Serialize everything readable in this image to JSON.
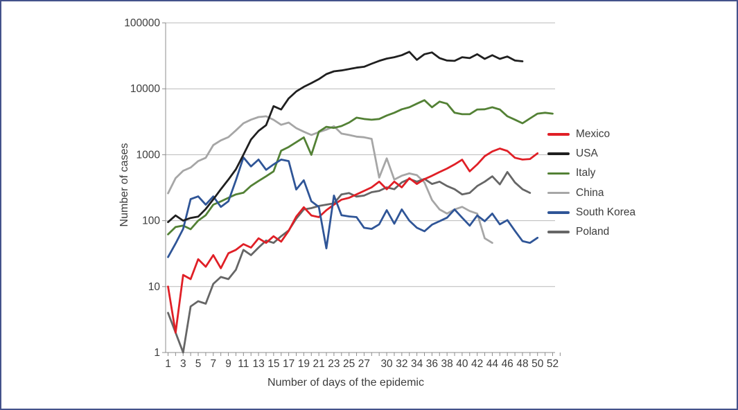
{
  "frame": {
    "border_color": "#44528b",
    "background": "#ffffff"
  },
  "chart_data": {
    "type": "line",
    "title": "",
    "xlabel": "Number of days of the epidemic",
    "ylabel": "Number of cases",
    "y_scale": "log",
    "ylim": [
      1,
      100000
    ],
    "xlim_days": [
      1,
      52
    ],
    "grid": "horizontal-major",
    "legend_position": "right",
    "y_ticks": [
      1,
      10,
      100,
      1000,
      10000,
      100000
    ],
    "y_tick_labels": [
      "1",
      "10",
      "100",
      "1000",
      "10000",
      "100000"
    ],
    "x_tick_days": [
      1,
      3,
      5,
      7,
      9,
      11,
      13,
      15,
      17,
      19,
      21,
      23,
      25,
      27,
      30,
      32,
      34,
      36,
      38,
      40,
      42,
      44,
      46,
      48,
      50,
      52
    ],
    "x_tick_labels": [
      "1",
      "3",
      "5",
      "7",
      "9",
      "11",
      "13",
      "15",
      "17",
      "19",
      "21",
      "23",
      "25",
      "27",
      "30",
      "32",
      "34",
      "36",
      "38",
      "40",
      "42",
      "44",
      "46",
      "48",
      "50",
      "52"
    ],
    "series": [
      {
        "name": "Mexico",
        "color": "#e01f26",
        "values": [
          10,
          2,
          15,
          13,
          26,
          20,
          30,
          19,
          32,
          36,
          44,
          39,
          54,
          46,
          58,
          48,
          70,
          115,
          160,
          120,
          113,
          144,
          175,
          208,
          222,
          250,
          283,
          320,
          390,
          300,
          390,
          320,
          440,
          360,
          426,
          479,
          546,
          617,
          712,
          840,
          560,
          712,
          950,
          1120,
          1240,
          1140,
          900,
          845,
          860,
          1050,
          null,
          null
        ]
      },
      {
        "name": "USA",
        "color": "#1f1f1f",
        "values": [
          95,
          120,
          100,
          110,
          115,
          150,
          210,
          300,
          420,
          600,
          1000,
          1700,
          2300,
          2800,
          5450,
          4850,
          7150,
          9100,
          10700,
          12200,
          14000,
          16700,
          18400,
          19000,
          19900,
          20900,
          21600,
          24000,
          26500,
          28700,
          30100,
          32300,
          36400,
          27500,
          33400,
          35600,
          29200,
          26800,
          26500,
          30100,
          29200,
          33400,
          28400,
          32300,
          28400,
          30900,
          26800,
          26100,
          null,
          null,
          null,
          null
        ]
      },
      {
        "name": "Italy",
        "color": "#538135",
        "values": [
          62,
          80,
          84,
          74,
          100,
          121,
          175,
          196,
          222,
          250,
          265,
          337,
          400,
          470,
          560,
          1150,
          1310,
          1550,
          1830,
          995,
          2230,
          2650,
          2550,
          2720,
          3070,
          3650,
          3480,
          3390,
          3480,
          3930,
          4330,
          4890,
          5240,
          5950,
          6710,
          5240,
          6390,
          5950,
          4330,
          4120,
          4120,
          4850,
          4890,
          5240,
          4850,
          3830,
          3400,
          3000,
          3550,
          4200,
          4330,
          4200
        ]
      },
      {
        "name": "China",
        "color": "#a6a6a6",
        "values": [
          260,
          440,
          570,
          640,
          800,
          900,
          1400,
          1650,
          1850,
          2340,
          3000,
          3400,
          3730,
          3830,
          3380,
          2840,
          3070,
          2530,
          2230,
          1990,
          2200,
          2400,
          2700,
          2090,
          1990,
          1880,
          1840,
          1740,
          450,
          880,
          420,
          480,
          520,
          490,
          380,
          206,
          148,
          128,
          148,
          162,
          140,
          128,
          54,
          46,
          null,
          null,
          null,
          null,
          null,
          null,
          null,
          null
        ]
      },
      {
        "name": "South Korea",
        "color": "#2f5597",
        "values": [
          28,
          45,
          75,
          212,
          233,
          175,
          233,
          162,
          197,
          409,
          910,
          665,
          845,
          590,
          712,
          845,
          800,
          297,
          410,
          197,
          162,
          38,
          240,
          121,
          116,
          113,
          78,
          75,
          88,
          144,
          90,
          148,
          100,
          78,
          69,
          87,
          98,
          111,
          148,
          111,
          84,
          120,
          98,
          128,
          88,
          102,
          70,
          49,
          46,
          55,
          null,
          null
        ]
      },
      {
        "name": "Poland",
        "color": "#666666",
        "values": [
          4,
          2,
          1,
          5,
          6,
          5.5,
          11,
          14,
          13,
          18,
          36,
          30,
          39,
          50,
          46,
          58,
          71,
          107,
          148,
          155,
          167,
          175,
          183,
          250,
          262,
          232,
          240,
          270,
          283,
          320,
          300,
          380,
          430,
          390,
          430,
          360,
          390,
          335,
          300,
          250,
          264,
          335,
          390,
          470,
          355,
          546,
          380,
          300,
          264,
          null,
          null,
          null
        ]
      }
    ]
  }
}
